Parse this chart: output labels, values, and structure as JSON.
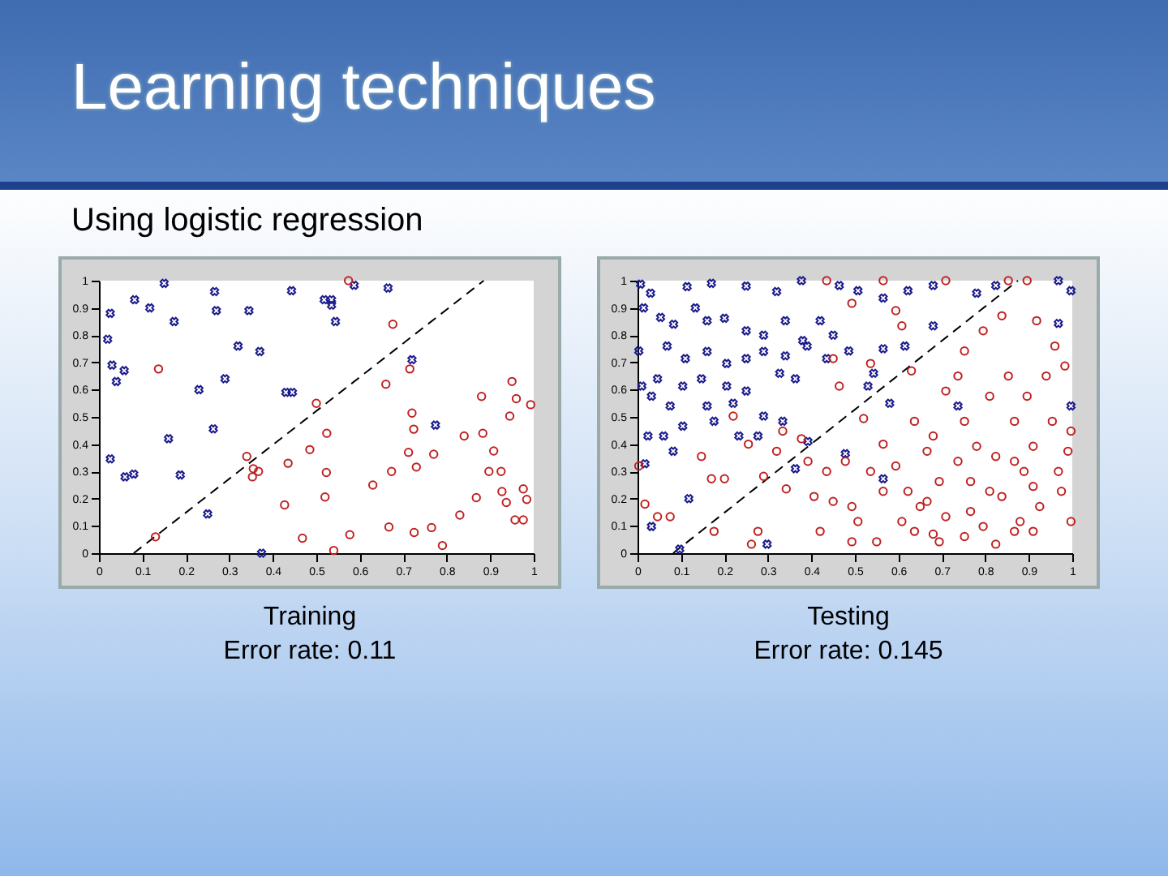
{
  "chart_data": [
    {
      "type": "scatter",
      "title": "Learning techniques",
      "subtitle": "Using logistic regression",
      "annotations": [
        "Training",
        "Error rate: 0.11"
      ],
      "xlim": [
        0,
        1
      ],
      "ylim": [
        0,
        1
      ],
      "xticks": [
        0,
        0.1,
        0.2,
        0.3,
        0.4,
        0.5,
        0.6,
        0.7,
        0.8,
        0.9,
        1
      ],
      "yticks": [
        0,
        0.1,
        0.2,
        0.3,
        0.4,
        0.5,
        0.6,
        0.7,
        0.8,
        0.9,
        1
      ],
      "grid": false,
      "series": [
        {
          "type": "line",
          "color": "#000000",
          "line_style": "dashed",
          "marker": "none",
          "x": [
            0.08,
            0.885
          ],
          "values": [
            0,
            1
          ]
        },
        {
          "color": "#1a1a8c",
          "marker": "cross",
          "x": [
            0.026,
            0.02,
            0.03,
            0.058,
            0.04,
            0.082,
            0.15,
            0.117,
            0.173,
            0.266,
            0.27,
            0.345,
            0.32,
            0.37,
            0.23,
            0.29,
            0.263,
            0.16,
            0.026,
            0.06,
            0.08,
            0.187,
            0.25,
            0.443,
            0.43,
            0.445,
            0.518,
            0.535,
            0.535,
            0.544,
            0.587,
            0.665,
            0.72,
            0.774,
            0.374
          ],
          "values": [
            0.88,
            0.785,
            0.69,
            0.67,
            0.63,
            0.93,
            0.99,
            0.9,
            0.85,
            0.96,
            0.89,
            0.89,
            0.76,
            0.74,
            0.6,
            0.64,
            0.456,
            0.42,
            0.346,
            0.28,
            0.29,
            0.287,
            0.144,
            0.963,
            0.59,
            0.59,
            0.93,
            0.93,
            0.91,
            0.85,
            0.983,
            0.973,
            0.71,
            0.47,
            0.0
          ]
        },
        {
          "color": "#c02020",
          "marker": "circle",
          "x": [
            0.574,
            0.676,
            0.137,
            0.715,
            0.66,
            0.5,
            0.524,
            0.485,
            0.34,
            0.355,
            0.367,
            0.353,
            0.435,
            0.427,
            0.52,
            0.523,
            0.468,
            0.54,
            0.577,
            0.63,
            0.673,
            0.712,
            0.72,
            0.724,
            0.73,
            0.77,
            0.667,
            0.725,
            0.765,
            0.79,
            0.83,
            0.84,
            0.868,
            0.883,
            0.88,
            0.897,
            0.925,
            0.908,
            0.927,
            0.937,
            0.95,
            0.96,
            0.945,
            0.993,
            0.976,
            0.984,
            0.957,
            0.976,
            0.13
          ],
          "values": [
            1.0,
            0.84,
            0.676,
            0.676,
            0.62,
            0.55,
            0.44,
            0.38,
            0.355,
            0.31,
            0.3,
            0.28,
            0.33,
            0.177,
            0.206,
            0.296,
            0.055,
            0.01,
            0.068,
            0.25,
            0.3,
            0.37,
            0.514,
            0.455,
            0.316,
            0.363,
            0.096,
            0.076,
            0.094,
            0.028,
            0.14,
            0.43,
            0.204,
            0.44,
            0.575,
            0.3,
            0.3,
            0.375,
            0.226,
            0.186,
            0.63,
            0.567,
            0.503,
            0.545,
            0.236,
            0.197,
            0.122,
            0.122,
            0.06
          ]
        }
      ]
    },
    {
      "type": "scatter",
      "annotations": [
        "Testing",
        "Error rate: 0.145"
      ],
      "xlim": [
        0,
        1
      ],
      "ylim": [
        0,
        1
      ],
      "xticks": [
        0,
        0.1,
        0.2,
        0.3,
        0.4,
        0.5,
        0.6,
        0.7,
        0.8,
        0.9,
        1
      ],
      "yticks": [
        0,
        0.1,
        0.2,
        0.3,
        0.4,
        0.5,
        0.6,
        0.7,
        0.8,
        0.9,
        1
      ],
      "grid": false,
      "series": [
        {
          "type": "line",
          "color": "#000000",
          "line_style": "dashed",
          "marker": "none",
          "x": [
            0.082,
            0.875
          ],
          "values": [
            0,
            1
          ]
        },
        {
          "color": "#1a1a8c",
          "marker": "cross",
          "x": [
            0.007,
            0.03,
            0.114,
            0.17,
            0.25,
            0.32,
            0.377,
            0.014,
            0.053,
            0.083,
            0.133,
            0.16,
            0.2,
            0.25,
            0.29,
            0.34,
            0.38,
            0.42,
            0.45,
            0.068,
            0.11,
            0.16,
            0.205,
            0.25,
            0.29,
            0.34,
            0.39,
            0.003,
            0.01,
            0.046,
            0.104,
            0.147,
            0.205,
            0.25,
            0.327,
            0.363,
            0.032,
            0.075,
            0.16,
            0.22,
            0.29,
            0.334,
            0.024,
            0.06,
            0.104,
            0.176,
            0.233,
            0.277,
            0.082,
            0.017,
            0.118,
            0.032,
            0.298,
            0.097,
            0.464,
            0.507,
            0.565,
            0.622,
            0.68,
            0.78,
            0.824,
            0.968,
            0.997,
            0.968,
            0.435,
            0.486,
            0.565,
            0.615,
            0.58,
            0.543,
            0.68,
            0.737,
            0.997,
            0.478,
            0.53,
            0.392,
            0.565,
            0.363
          ],
          "values": [
            0.987,
            0.954,
            0.978,
            0.99,
            0.98,
            0.96,
            1.0,
            0.9,
            0.865,
            0.84,
            0.9,
            0.853,
            0.862,
            0.816,
            0.8,
            0.853,
            0.78,
            0.853,
            0.8,
            0.76,
            0.714,
            0.74,
            0.696,
            0.714,
            0.74,
            0.724,
            0.76,
            0.742,
            0.613,
            0.64,
            0.613,
            0.64,
            0.613,
            0.595,
            0.66,
            0.64,
            0.576,
            0.54,
            0.54,
            0.55,
            0.503,
            0.484,
            0.43,
            0.43,
            0.466,
            0.484,
            0.43,
            0.43,
            0.374,
            0.328,
            0.2,
            0.098,
            0.033,
            0.015,
            0.982,
            0.963,
            0.936,
            0.963,
            0.982,
            0.954,
            0.982,
            1.0,
            0.963,
            0.843,
            0.714,
            0.742,
            0.75,
            0.76,
            0.55,
            0.66,
            0.834,
            0.54,
            0.54,
            0.365,
            0.613,
            0.41,
            0.273,
            0.31
          ]
        },
        {
          "color": "#c02020",
          "marker": "circle",
          "x": [
            0.003,
            0.017,
            0.046,
            0.075,
            0.147,
            0.17,
            0.2,
            0.22,
            0.255,
            0.29,
            0.262,
            0.334,
            0.342,
            0.377,
            0.392,
            0.406,
            0.42,
            0.45,
            0.464,
            0.478,
            0.493,
            0.507,
            0.52,
            0.536,
            0.536,
            0.565,
            0.594,
            0.608,
            0.594,
            0.608,
            0.63,
            0.637,
            0.637,
            0.666,
            0.68,
            0.694,
            0.694,
            0.709,
            0.737,
            0.737,
            0.752,
            0.752,
            0.766,
            0.766,
            0.795,
            0.81,
            0.824,
            0.838,
            0.838,
            0.853,
            0.867,
            0.88,
            0.889,
            0.896,
            0.91,
            0.918,
            0.925,
            0.94,
            0.954,
            0.96,
            0.968,
            0.975,
            0.983,
            0.99,
            0.997,
            0.997,
            0.709,
            0.853,
            0.896,
            0.565,
            0.435,
            0.493,
            0.68,
            0.824,
            0.91,
            0.752,
            0.65,
            0.709,
            0.795,
            0.867,
            0.81,
            0.622,
            0.493,
            0.55,
            0.45,
            0.91,
            0.867,
            0.78,
            0.666,
            0.565,
            0.435,
            0.32,
            0.277,
            0.176
          ],
          "values": [
            0.32,
            0.18,
            0.134,
            0.134,
            0.355,
            0.273,
            0.273,
            0.503,
            0.4,
            0.282,
            0.033,
            0.448,
            0.236,
            0.42,
            0.337,
            0.208,
            0.08,
            0.714,
            0.613,
            0.337,
            0.171,
            0.116,
            0.494,
            0.696,
            0.3,
            0.227,
            0.89,
            0.834,
            0.32,
            0.116,
            0.669,
            0.484,
            0.08,
            0.19,
            0.43,
            0.263,
            0.042,
            0.595,
            0.65,
            0.337,
            0.484,
            0.742,
            0.263,
            0.153,
            0.816,
            0.576,
            0.355,
            0.208,
            0.871,
            0.65,
            0.484,
            0.116,
            0.3,
            0.576,
            0.392,
            0.853,
            0.171,
            0.65,
            0.484,
            0.76,
            0.3,
            0.227,
            0.687,
            0.374,
            0.448,
            0.116,
            1.0,
            1.0,
            1.0,
            1.0,
            1.0,
            0.917,
            0.07,
            0.033,
            0.08,
            0.061,
            0.171,
            0.134,
            0.098,
            0.08,
            0.227,
            0.227,
            0.042,
            0.042,
            0.19,
            0.245,
            0.337,
            0.392,
            0.374,
            0.4,
            0.3,
            0.374,
            0.08,
            0.08
          ]
        }
      ]
    }
  ]
}
